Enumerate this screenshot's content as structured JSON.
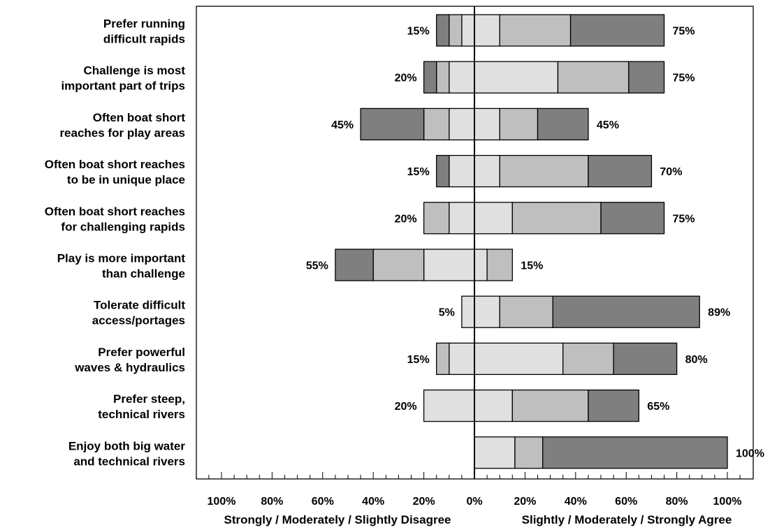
{
  "chart_data": {
    "type": "bar",
    "orientation": "horizontal",
    "stacked": true,
    "diverging": true,
    "categories": [
      [
        "Prefer running",
        "difficult rapids"
      ],
      [
        "Challenge is most",
        "important part of trips"
      ],
      [
        "Often boat short",
        "reaches for play areas"
      ],
      [
        "Often boat short reaches",
        "to be in unique place"
      ],
      [
        "Often boat short reaches",
        "for challenging rapids"
      ],
      [
        "Play is more important",
        "than challenge"
      ],
      [
        "Tolerate difficult",
        "access/portages"
      ],
      [
        "Prefer powerful",
        "waves & hydraulics"
      ],
      [
        "Prefer steep,",
        "technical rivers"
      ],
      [
        "Enjoy both big water",
        "and technical rivers"
      ]
    ],
    "series": [
      {
        "side": "disagree",
        "level": "strongly",
        "color": "#7f7f7f",
        "values": [
          5,
          5,
          25,
          5,
          0,
          15,
          0,
          0,
          0,
          0
        ]
      },
      {
        "side": "disagree",
        "level": "moderately",
        "color": "#bfbfbf",
        "values": [
          5,
          5,
          10,
          0,
          10,
          20,
          0,
          5,
          0,
          0
        ]
      },
      {
        "side": "disagree",
        "level": "slightly",
        "color": "#e0e0e0",
        "values": [
          5,
          10,
          10,
          10,
          10,
          20,
          5,
          10,
          20,
          0
        ]
      },
      {
        "side": "agree",
        "level": "slightly",
        "color": "#e0e0e0",
        "values": [
          10,
          33,
          10,
          10,
          15,
          5,
          10,
          35,
          15,
          16
        ]
      },
      {
        "side": "agree",
        "level": "moderately",
        "color": "#bfbfbf",
        "values": [
          28,
          28,
          15,
          35,
          35,
          10,
          21,
          20,
          30,
          11
        ]
      },
      {
        "side": "agree",
        "level": "strongly",
        "color": "#7f7f7f",
        "values": [
          37,
          14,
          20,
          25,
          25,
          0,
          58,
          25,
          20,
          73
        ]
      }
    ],
    "disagree_labels": [
      "15%",
      "20%",
      "45%",
      "15%",
      "20%",
      "55%",
      "5%",
      "15%",
      "20%",
      ""
    ],
    "agree_labels": [
      "75%",
      "75%",
      "45%",
      "70%",
      "75%",
      "15%",
      "89%",
      "80%",
      "65%",
      "100%"
    ],
    "xlim": [
      -100,
      100
    ],
    "x_ticks": [
      "100%",
      "80%",
      "60%",
      "40%",
      "20%",
      "0%",
      "20%",
      "40%",
      "60%",
      "80%",
      "100%"
    ],
    "xlabel_left": "Strongly / Moderately / Slightly Disagree",
    "xlabel_right": "Slightly / Moderately / Strongly Agree",
    "grid": false,
    "legend": "none"
  }
}
